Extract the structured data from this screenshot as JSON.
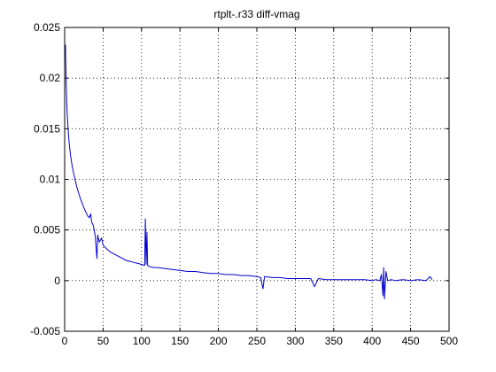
{
  "chart_data": {
    "type": "line",
    "title": "rtplt-.r33 diff-vmag",
    "xlabel": "",
    "ylabel": "",
    "xlim": [
      0,
      500
    ],
    "ylim": [
      -0.005,
      0.025
    ],
    "grid": true,
    "grid_style": "dotted",
    "x_ticks": [
      0,
      50,
      100,
      150,
      200,
      250,
      300,
      350,
      400,
      450,
      500
    ],
    "x_tick_labels": [
      "0",
      "50",
      "100",
      "150",
      "200",
      "250",
      "300",
      "350",
      "400",
      "450",
      "500"
    ],
    "y_ticks": [
      -0.005,
      0,
      0.005,
      0.01,
      0.015,
      0.02,
      0.025
    ],
    "y_tick_labels": [
      "-0.005",
      "0",
      "0.005",
      "0.01",
      "0.015",
      "0.02",
      "0.025"
    ],
    "series": [
      {
        "color": "#0000cc",
        "x": [
          1,
          2,
          3,
          4,
          5,
          6,
          7,
          8,
          9,
          10,
          12,
          14,
          16,
          18,
          20,
          22,
          25,
          28,
          30,
          32,
          34,
          35,
          37,
          38,
          40,
          41,
          42,
          43,
          45,
          48,
          50,
          55,
          60,
          65,
          70,
          75,
          80,
          85,
          90,
          95,
          100,
          104,
          105,
          106,
          107,
          108,
          110,
          115,
          120,
          130,
          140,
          150,
          160,
          170,
          180,
          190,
          200,
          210,
          220,
          230,
          240,
          250,
          255,
          258,
          260,
          270,
          280,
          290,
          300,
          310,
          320,
          325,
          330,
          340,
          350,
          360,
          370,
          380,
          390,
          400,
          405,
          410,
          412,
          414,
          415,
          416,
          418,
          420,
          425,
          430,
          440,
          450,
          460,
          470,
          475,
          478
        ],
        "y": [
          0.0233,
          0.0195,
          0.017,
          0.0155,
          0.0145,
          0.0135,
          0.0128,
          0.0122,
          0.0117,
          0.0112,
          0.0105,
          0.0098,
          0.0092,
          0.0087,
          0.0082,
          0.0078,
          0.0072,
          0.0067,
          0.0064,
          0.0062,
          0.0066,
          0.0058,
          0.0055,
          0.0052,
          0.0043,
          0.003,
          0.0022,
          0.0045,
          0.0038,
          0.0042,
          0.0035,
          0.0031,
          0.0028,
          0.0026,
          0.0024,
          0.0022,
          0.002,
          0.0019,
          0.0018,
          0.0017,
          0.0016,
          0.0015,
          0.0061,
          0.0016,
          0.0048,
          0.0015,
          0.0014,
          0.0013,
          0.0013,
          0.0012,
          0.0011,
          0.001,
          0.0009,
          0.0009,
          0.0008,
          0.0007,
          0.0007,
          0.0006,
          0.0006,
          0.0005,
          0.0005,
          0.0004,
          0.0003,
          -0.0008,
          0.0004,
          0.0003,
          0.0003,
          0.0002,
          0.0002,
          0.0002,
          0.0002,
          -0.0006,
          0.0002,
          0.0001,
          0.0001,
          0.0001,
          0.0001,
          0.0001,
          0.0001,
          0.0,
          0.0001,
          0.0,
          0.0006,
          -0.0015,
          0.0013,
          -0.0018,
          0.0009,
          0.0,
          0.0001,
          0.0,
          0.0001,
          0.0,
          0.0001,
          0.0,
          0.0004,
          0.0001
        ]
      }
    ]
  }
}
